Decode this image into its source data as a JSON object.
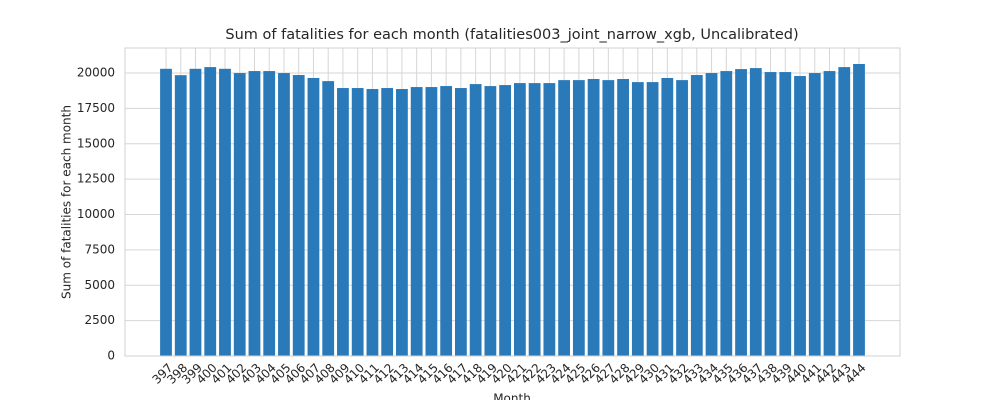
{
  "chart_data": {
    "type": "bar",
    "title": "Sum of fatalities for each month (fatalities003_joint_narrow_xgb, Uncalibrated)",
    "x_label": "Month",
    "y_label": "Sum of fatalities for each month",
    "categories": [
      "397",
      "398",
      "399",
      "400",
      "401",
      "402",
      "403",
      "404",
      "405",
      "406",
      "407",
      "408",
      "409",
      "410",
      "411",
      "412",
      "413",
      "414",
      "415",
      "416",
      "417",
      "418",
      "419",
      "420",
      "421",
      "422",
      "423",
      "424",
      "425",
      "426",
      "427",
      "428",
      "429",
      "430",
      "431",
      "432",
      "433",
      "434",
      "435",
      "436",
      "437",
      "438",
      "439",
      "440",
      "441",
      "442",
      "443",
      "444"
    ],
    "values": [
      20300,
      19850,
      20300,
      20420,
      20300,
      20000,
      20140,
      20140,
      20000,
      19860,
      19650,
      19430,
      18940,
      18940,
      18870,
      18940,
      18870,
      19010,
      19010,
      19080,
      18940,
      19220,
      19080,
      19150,
      19290,
      19290,
      19290,
      19500,
      19500,
      19580,
      19500,
      19580,
      19360,
      19360,
      19650,
      19500,
      19860,
      20000,
      20140,
      20280,
      20350,
      20070,
      20070,
      19790,
      20000,
      20140,
      20420,
      20640
    ],
    "color": "#2a7ab9",
    "ylim": [
      0,
      21770
    ],
    "yticks": [
      0,
      2500,
      5000,
      7500,
      10000,
      12500,
      15000,
      17500,
      20000
    ],
    "grid": true
  }
}
